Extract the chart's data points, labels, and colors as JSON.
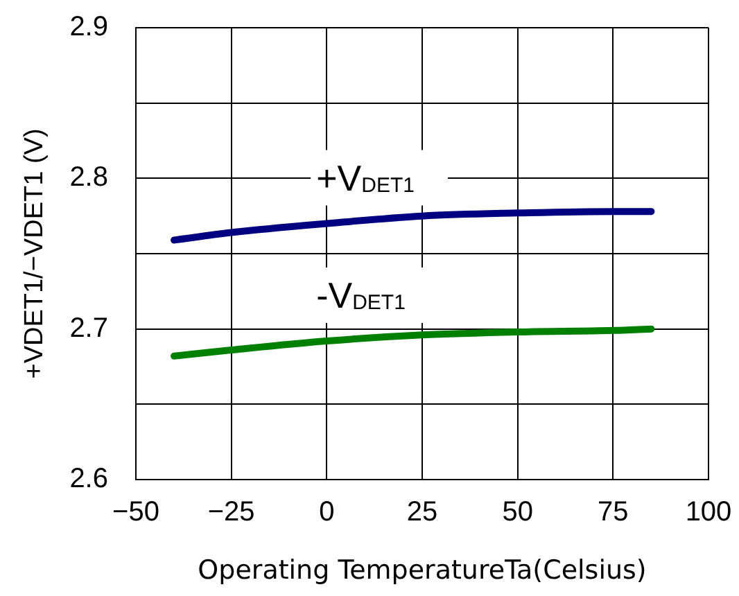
{
  "chart_data": {
    "type": "line",
    "xlabel": "Operating TemperatureTa(Celsius)",
    "ylabel": "+VDET1/−VDET1 (V)",
    "x": [
      -40,
      -25,
      0,
      25,
      50,
      75,
      85
    ],
    "series": [
      {
        "name": "+V$_{DET1}$",
        "color": "#000080",
        "values": [
          2.759,
          2.764,
          2.77,
          2.775,
          2.777,
          2.778,
          2.778
        ]
      },
      {
        "name": "-V$_{DET1}$",
        "color": "#008000",
        "values": [
          2.682,
          2.686,
          2.692,
          2.696,
          2.698,
          2.699,
          2.7
        ]
      }
    ],
    "xlim": [
      -50,
      100
    ],
    "xticks": [
      {
        "value": -50,
        "label": "−50"
      },
      {
        "value": -25,
        "label": "−25"
      },
      0,
      25,
      50,
      75,
      100
    ],
    "ylim": [
      2.6,
      2.9
    ],
    "yticks": [
      2.6,
      {
        "value": 2.65,
        "label": null
      },
      2.7,
      {
        "value": 2.75,
        "label": null
      },
      2.8,
      {
        "value": 2.85,
        "label": null
      },
      2.9
    ],
    "grid": true,
    "marker": "none",
    "line_style": "solid"
  }
}
